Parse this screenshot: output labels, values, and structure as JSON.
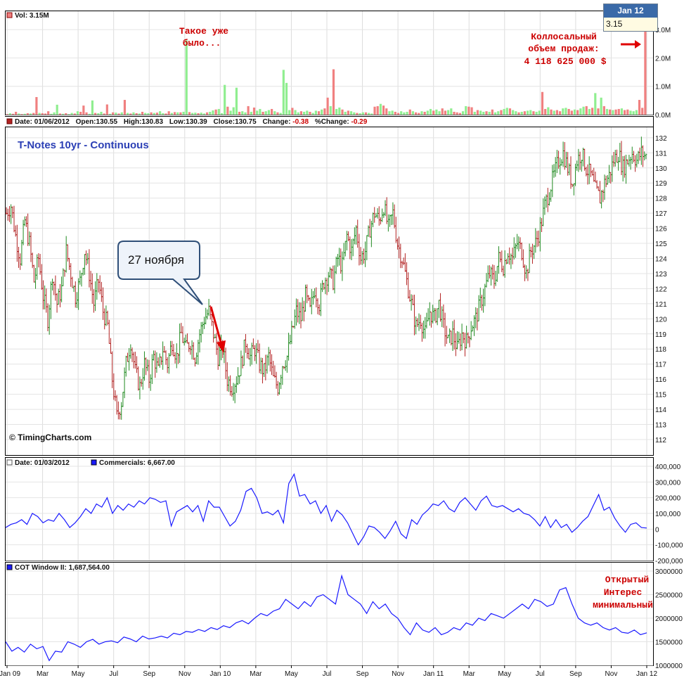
{
  "chart_data": [
    {
      "type": "bar",
      "panel": "volume",
      "header": "Vol: 3.15M",
      "yticks": [
        "0.0M",
        "1.0M",
        "2.0M",
        "3.0M"
      ],
      "ylim": [
        0,
        3.3
      ],
      "unit": "M",
      "colors": {
        "up": "#90ee90",
        "down": "#f08080"
      },
      "values": [
        0.02,
        0.05,
        0.03,
        0.1,
        0.04,
        0.02,
        0.03,
        0.05,
        0.04,
        0.06,
        0.62,
        0.06,
        0.05,
        0.04,
        0.12,
        0.03,
        0.08,
        0.35,
        0.04,
        0.03,
        0.05,
        0.02,
        0.06,
        0.04,
        0.12,
        0.1,
        0.32,
        0.08,
        0.03,
        0.5,
        0.06,
        0.05,
        0.1,
        0.04,
        0.36,
        0.03,
        0.08,
        0.07,
        0.04,
        0.08,
        0.52,
        0.06,
        0.04,
        0.08,
        0.05,
        0.04,
        0.1,
        0.06,
        0.05,
        0.08,
        0.06,
        0.07,
        0.12,
        0.05,
        0.04,
        0.12,
        0.06,
        0.09,
        0.08,
        0.08,
        0.1,
        2.62,
        0.09,
        0.06,
        0.07,
        0.05,
        0.07,
        0.04,
        0.08,
        0.1,
        0.15,
        0.18,
        0.2,
        0.05,
        1.05,
        0.28,
        0.14,
        0.26,
        0.95,
        0.1,
        0.12,
        0.08,
        0.3,
        0.1,
        0.25,
        0.14,
        0.2,
        0.1,
        0.12,
        0.16,
        0.2,
        0.12,
        0.08,
        0.06,
        1.58,
        1.12,
        0.16,
        0.24,
        0.16,
        0.08,
        0.12,
        0.1,
        0.14,
        0.1,
        0.06,
        0.14,
        0.12,
        0.18,
        0.22,
        0.6,
        0.3,
        1.6,
        0.2,
        0.25,
        0.18,
        0.1,
        0.14,
        0.12,
        0.08,
        0.06,
        0.05,
        0.08,
        0.08,
        0.06,
        0.04,
        0.28,
        0.3,
        0.38,
        0.32,
        0.22,
        0.12,
        0.14,
        0.1,
        0.06,
        0.12,
        0.08,
        0.1,
        0.18,
        0.12,
        0.08,
        0.06,
        0.12,
        0.1,
        0.14,
        0.2,
        0.14,
        0.18,
        0.12,
        0.22,
        0.14,
        0.16,
        0.22,
        0.1,
        0.08,
        0.06,
        0.12,
        0.3,
        0.28,
        0.26,
        0.1,
        0.16,
        0.14,
        0.1,
        0.12,
        0.1,
        0.18,
        0.08,
        0.12,
        0.16,
        0.2,
        0.24,
        0.22,
        0.16,
        0.12,
        0.08,
        0.1,
        0.12,
        0.14,
        0.16,
        0.12,
        0.1,
        0.14,
        0.8,
        0.2,
        0.26,
        0.18,
        0.14,
        0.16,
        0.12,
        0.22,
        0.24,
        0.2,
        0.14,
        0.18,
        0.16,
        0.22,
        0.28,
        0.3,
        0.2,
        0.24,
        0.76,
        0.22,
        0.6,
        0.3,
        0.2,
        0.18,
        0.16,
        0.18,
        0.2,
        0.22,
        0.16,
        0.18,
        0.14,
        0.12,
        0.16,
        0.52,
        0.24,
        3.15
      ],
      "up": [
        0,
        1,
        0,
        0,
        1,
        0,
        1,
        0,
        1,
        0,
        0,
        1,
        0,
        0,
        0,
        1,
        1,
        1,
        0,
        1,
        0,
        1,
        1,
        0,
        1,
        0,
        0,
        0,
        1,
        1,
        0,
        1,
        1,
        0,
        0,
        1,
        0,
        1,
        0,
        1,
        0,
        1,
        0,
        1,
        0,
        1,
        0,
        1,
        1,
        0,
        1,
        0,
        1,
        1,
        0,
        0,
        1,
        0,
        1,
        0,
        1,
        1,
        0,
        1,
        1,
        0,
        1,
        1,
        0,
        1,
        1,
        0,
        1,
        1,
        1,
        0,
        1,
        1,
        1,
        0,
        1,
        1,
        0,
        1,
        0,
        1,
        1,
        0,
        1,
        1,
        0,
        1,
        0,
        1,
        1,
        1,
        1,
        0,
        1,
        1,
        0,
        1,
        1,
        0,
        1,
        1,
        0,
        1,
        0,
        0,
        1,
        0,
        1,
        1,
        0,
        1,
        0,
        1,
        1,
        0,
        1,
        1,
        0,
        1,
        1,
        0,
        0,
        1,
        0,
        0,
        1,
        1,
        0,
        0,
        1,
        1,
        1,
        0,
        1,
        0,
        0,
        1,
        0,
        1,
        1,
        0,
        1,
        1,
        0,
        0,
        1,
        1,
        0,
        0,
        0,
        1,
        1,
        0,
        0,
        1,
        0,
        1,
        1,
        0,
        1,
        0,
        1,
        1,
        0,
        1,
        1,
        0,
        1,
        1,
        0,
        1,
        0,
        1,
        1,
        0,
        1,
        1,
        0,
        0,
        1,
        0,
        1,
        0,
        0,
        1,
        1,
        0,
        0,
        1,
        0,
        1,
        1,
        0,
        1,
        0,
        1,
        0,
        1,
        0,
        1,
        0,
        1,
        0,
        0,
        1,
        0,
        0,
        1,
        1,
        1,
        0,
        0,
        0,
        1,
        0
      ]
    },
    {
      "type": "ohlc",
      "panel": "price",
      "header": {
        "date": "Date: 01/06/2012",
        "open": "Open:130.55",
        "high": "High:130.83",
        "low": "Low:130.39",
        "close": "Close:130.75",
        "change_label": "Change:",
        "change": "-0.38",
        "pctchange_label": "%Change:",
        "pctchange": "-0.29"
      },
      "title": "T-Notes 10yr - Continuous",
      "copyright": "© TimingCharts.com",
      "yticks": [
        112,
        113,
        114,
        115,
        116,
        117,
        118,
        119,
        120,
        121,
        122,
        123,
        124,
        125,
        126,
        127,
        128,
        129,
        130,
        131,
        132
      ],
      "ylim": [
        111.3,
        132.6
      ],
      "colors": {
        "up": "#228b22",
        "down": "#b22222"
      },
      "close_path": [
        127.0,
        127.5,
        125.5,
        124.0,
        126.5,
        125.0,
        122.5,
        124.0,
        121.5,
        120.0,
        123.0,
        121.0,
        122.0,
        124.5,
        123.0,
        121.5,
        122.5,
        124.5,
        123.0,
        121.0,
        122.5,
        120.5,
        119.5,
        116.0,
        113.5,
        114.5,
        117.0,
        118.5,
        116.5,
        115.5,
        117.0,
        116.0,
        117.5,
        116.5,
        118.0,
        117.0,
        118.5,
        117.5,
        119.0,
        118.0,
        118.5,
        117.5,
        119.0,
        120.0,
        120.5,
        119.0,
        117.5,
        118.0,
        116.0,
        115.5,
        116.0,
        117.0,
        118.5,
        117.5,
        118.0,
        117.0,
        116.5,
        117.5,
        116.0,
        115.5,
        117.0,
        117.5,
        119.0,
        120.5,
        120.0,
        121.5,
        120.5,
        122.0,
        121.0,
        122.5,
        123.0,
        122.5,
        124.0,
        123.5,
        125.5,
        124.5,
        126.0,
        124.0,
        124.5,
        126.0,
        127.0,
        126.5,
        127.5,
        126.0,
        127.0,
        125.0,
        124.0,
        122.5,
        121.0,
        119.5,
        120.0,
        119.0,
        120.5,
        120.0,
        121.0,
        119.5,
        118.5,
        119.0,
        118.0,
        119.0,
        118.5,
        119.5,
        120.0,
        121.0,
        122.0,
        123.0,
        122.5,
        124.0,
        123.5,
        124.5,
        124.0,
        125.0,
        124.5,
        123.0,
        124.5,
        125.0,
        126.0,
        127.5,
        128.5,
        129.5,
        130.5,
        131.0,
        130.0,
        129.0,
        130.5,
        131.0,
        130.0,
        129.5,
        128.5,
        128.0,
        129.0,
        129.5,
        130.5,
        131.0,
        130.0,
        130.5,
        131.0,
        130.5,
        131.0,
        130.75
      ],
      "months": [
        "Jan 09",
        "Mar",
        "May",
        "Jul",
        "Sep",
        "Nov",
        "Jan 10",
        "Mar",
        "May",
        "Jul",
        "Sep",
        "Nov",
        "Jan 11",
        "Mar",
        "May",
        "Jul",
        "Sep",
        "Nov",
        "Jan 12"
      ],
      "callout": "27 ноября"
    },
    {
      "type": "line",
      "panel": "commercials",
      "header": {
        "date": "Date: 01/03/2012",
        "series": "Commercials: 6,667.00"
      },
      "yticks": [
        "-200,000",
        "-100,000",
        "0",
        "100,000",
        "200,000",
        "300,000",
        "400,000"
      ],
      "ylim": [
        -200000,
        400000
      ],
      "color": "#1a1aff",
      "values": [
        10000,
        30000,
        40000,
        60000,
        30000,
        100000,
        80000,
        40000,
        60000,
        50000,
        100000,
        60000,
        10000,
        40000,
        80000,
        130000,
        100000,
        160000,
        140000,
        200000,
        100000,
        150000,
        120000,
        160000,
        140000,
        180000,
        160000,
        200000,
        190000,
        170000,
        180000,
        20000,
        110000,
        130000,
        150000,
        110000,
        150000,
        50000,
        180000,
        140000,
        140000,
        80000,
        20000,
        50000,
        120000,
        240000,
        260000,
        200000,
        100000,
        110000,
        90000,
        120000,
        40000,
        290000,
        350000,
        210000,
        220000,
        160000,
        180000,
        100000,
        150000,
        50000,
        120000,
        90000,
        40000,
        -30000,
        -100000,
        -50000,
        20000,
        10000,
        -20000,
        -60000,
        -10000,
        50000,
        -30000,
        -60000,
        60000,
        30000,
        90000,
        120000,
        160000,
        150000,
        180000,
        130000,
        110000,
        170000,
        200000,
        160000,
        120000,
        180000,
        210000,
        150000,
        140000,
        150000,
        130000,
        110000,
        130000,
        100000,
        90000,
        60000,
        20000,
        80000,
        10000,
        60000,
        10000,
        30000,
        -20000,
        10000,
        50000,
        80000,
        150000,
        220000,
        120000,
        140000,
        70000,
        20000,
        -20000,
        30000,
        40000,
        10000,
        6667
      ],
      "months": [
        "Jan 09",
        "Mar",
        "May",
        "Jul",
        "Sep",
        "Nov",
        "Jan 10",
        "Mar",
        "May",
        "Jul",
        "Sep",
        "Nov",
        "Jan 11",
        "Mar",
        "May",
        "Jul",
        "Sep",
        "Nov",
        "Jan 12"
      ]
    },
    {
      "type": "line",
      "panel": "cot_window",
      "header": {
        "series": "COT Window II: 1,687,564.00"
      },
      "yticks": [
        "1000000",
        "1500000",
        "2000000",
        "2500000",
        "3000000"
      ],
      "ylim": [
        1000000,
        3000000
      ],
      "color": "#1a1aff",
      "values": [
        1500000,
        1300000,
        1380000,
        1280000,
        1450000,
        1350000,
        1400000,
        1100000,
        1300000,
        1280000,
        1500000,
        1450000,
        1380000,
        1500000,
        1550000,
        1450000,
        1500000,
        1520000,
        1480000,
        1600000,
        1560000,
        1500000,
        1620000,
        1560000,
        1580000,
        1620000,
        1580000,
        1680000,
        1650000,
        1720000,
        1700000,
        1760000,
        1720000,
        1800000,
        1760000,
        1840000,
        1800000,
        1900000,
        1950000,
        1880000,
        2000000,
        2100000,
        2050000,
        2150000,
        2200000,
        2400000,
        2300000,
        2200000,
        2350000,
        2250000,
        2450000,
        2500000,
        2400000,
        2300000,
        2900000,
        2500000,
        2400000,
        2300000,
        2100000,
        2350000,
        2200000,
        2300000,
        2100000,
        2000000,
        1800000,
        1650000,
        1900000,
        1750000,
        1700000,
        1800000,
        1650000,
        1700000,
        1800000,
        1750000,
        1900000,
        1850000,
        2000000,
        1950000,
        2100000,
        2050000,
        2000000,
        2100000,
        2200000,
        2300000,
        2200000,
        2400000,
        2350000,
        2250000,
        2300000,
        2600000,
        2650000,
        2300000,
        2000000,
        1900000,
        1850000,
        1900000,
        1800000,
        1750000,
        1800000,
        1700000,
        1680000,
        1750000,
        1650000,
        1690000
      ],
      "months": [
        "Jan 09",
        "Mar",
        "May",
        "Jul",
        "Sep",
        "Nov",
        "Jan 10",
        "Mar",
        "May",
        "Jul",
        "Sep",
        "Nov",
        "Jan 11",
        "Mar",
        "May",
        "Jul",
        "Sep",
        "Nov",
        "Jan 12"
      ]
    }
  ],
  "annotations": {
    "vol_left": [
      "Такое уже",
      "было..."
    ],
    "vol_right": [
      "Коллосальный",
      "объем продаж:",
      "4 118 625 000 $"
    ],
    "oi": [
      "Открытый",
      "Интерес",
      "минимальный"
    ]
  },
  "tooltip": {
    "date": "Jan 12",
    "value": "3.15"
  }
}
